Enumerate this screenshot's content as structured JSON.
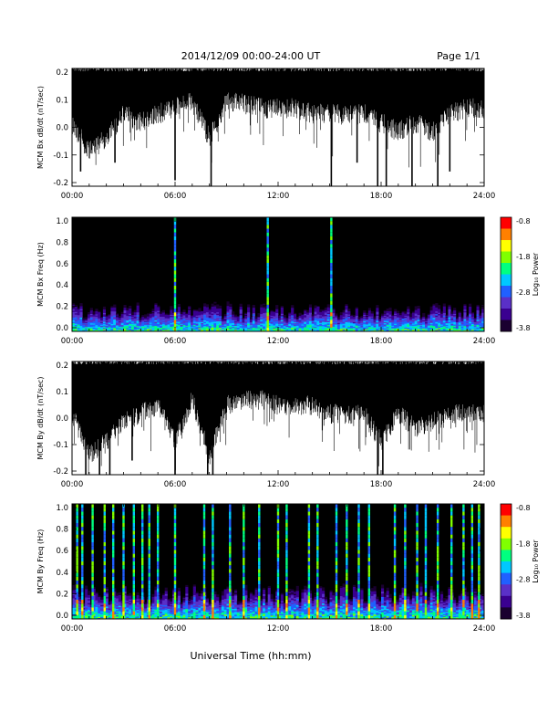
{
  "header": {
    "title": "2014/12/09  00:00-24:00 UT",
    "page": "Page 1/1"
  },
  "footer": {
    "xlabel": "Universal Time (hh:mm)"
  },
  "colors": {
    "waveform": "#000000",
    "spectrogram_background": "#000000",
    "colorbar": [
      "#1a0030",
      "#3a0090",
      "#5a30c8",
      "#2060ff",
      "#00c8ff",
      "#00ff80",
      "#80ff00",
      "#ffff00",
      "#ff8000",
      "#ff0000"
    ]
  },
  "colorbar": {
    "label": "Log₁₀ Power",
    "ticks": [
      "-0.8",
      "-1.8",
      "-2.8",
      "-3.8"
    ]
  },
  "chart_data": [
    {
      "type": "line",
      "id": "bx-wave",
      "ylabel": "MCM Bx dB/dt (nT/sec)",
      "ylim": [
        -0.2,
        0.2
      ],
      "xlim": [
        0,
        24
      ],
      "x_ticks": [
        "00:00",
        "06:00",
        "12:00",
        "18:00",
        "24:00"
      ],
      "y_ticks": [
        "0.2",
        "0.1",
        "0.0",
        "-0.1",
        "-0.2"
      ],
      "upper_envelope": 0.19,
      "baseline_lower": [
        [
          0,
          0.05
        ],
        [
          1,
          -0.05
        ],
        [
          2,
          0.0
        ],
        [
          3,
          0.08
        ],
        [
          4,
          0.05
        ],
        [
          5,
          0.08
        ],
        [
          6,
          0.1
        ],
        [
          7,
          0.12
        ],
        [
          8,
          0.0
        ],
        [
          9,
          0.12
        ],
        [
          10,
          0.12
        ],
        [
          11,
          0.1
        ],
        [
          12,
          0.1
        ],
        [
          13,
          0.1
        ],
        [
          14,
          0.08
        ],
        [
          15,
          0.08
        ],
        [
          16,
          0.08
        ],
        [
          17,
          0.08
        ],
        [
          18,
          0.05
        ],
        [
          19,
          0.02
        ],
        [
          20,
          0.05
        ],
        [
          21,
          0.02
        ],
        [
          22,
          0.08
        ],
        [
          23,
          0.1
        ],
        [
          24,
          0.1
        ]
      ],
      "spikes": [
        [
          0.5,
          -0.15
        ],
        [
          2.5,
          -0.12
        ],
        [
          6.0,
          -0.18
        ],
        [
          8.1,
          -0.2
        ],
        [
          15.1,
          -0.2
        ],
        [
          16.6,
          -0.12
        ],
        [
          17.8,
          -0.2
        ],
        [
          18.3,
          -0.2
        ],
        [
          19.8,
          -0.2
        ],
        [
          21.3,
          -0.2
        ],
        [
          22.0,
          -0.15
        ]
      ]
    },
    {
      "type": "heatmap",
      "id": "bx-spec",
      "ylabel": "MCM Bx Freq (Hz)",
      "ylim": [
        0.0,
        1.0
      ],
      "xlim": [
        0,
        24
      ],
      "x_ticks": [
        "00:00",
        "06:00",
        "12:00",
        "18:00",
        "24:00"
      ],
      "y_ticks": [
        "1.0",
        "0.8",
        "0.6",
        "0.4",
        "0.2",
        "0.0"
      ],
      "vertical_lines": [
        6.0,
        11.4,
        15.1
      ],
      "band_max_freq": 0.25
    },
    {
      "type": "line",
      "id": "by-wave",
      "ylabel": "MCM By dB/dt (nT/sec)",
      "ylim": [
        -0.2,
        0.2
      ],
      "xlim": [
        0,
        24
      ],
      "x_ticks": [
        "00:00",
        "06:00",
        "12:00",
        "18:00",
        "24:00"
      ],
      "y_ticks": [
        "0.2",
        "0.1",
        "0.0",
        "-0.1",
        "-0.2"
      ],
      "upper_envelope": 0.19,
      "baseline_lower": [
        [
          0,
          0.05
        ],
        [
          1,
          -0.1
        ],
        [
          2,
          -0.05
        ],
        [
          3,
          0.02
        ],
        [
          4,
          0.05
        ],
        [
          5,
          0.08
        ],
        [
          6,
          -0.05
        ],
        [
          7,
          0.1
        ],
        [
          8,
          -0.1
        ],
        [
          9,
          0.08
        ],
        [
          10,
          0.1
        ],
        [
          11,
          0.1
        ],
        [
          12,
          0.08
        ],
        [
          13,
          0.08
        ],
        [
          14,
          0.08
        ],
        [
          15,
          0.05
        ],
        [
          16,
          0.05
        ],
        [
          17,
          0.05
        ],
        [
          18,
          -0.05
        ],
        [
          19,
          0.05
        ],
        [
          20,
          0.0
        ],
        [
          21,
          0.02
        ],
        [
          22,
          0.05
        ],
        [
          23,
          0.05
        ],
        [
          24,
          0.05
        ]
      ],
      "spikes": [
        [
          0.8,
          -0.2
        ],
        [
          1.6,
          -0.2
        ],
        [
          2.2,
          -0.2
        ],
        [
          3.5,
          -0.15
        ],
        [
          6.0,
          -0.2
        ],
        [
          7.9,
          -0.2
        ],
        [
          8.2,
          -0.2
        ],
        [
          17.8,
          -0.2
        ],
        [
          18.1,
          -0.2
        ]
      ]
    },
    {
      "type": "heatmap",
      "id": "by-spec",
      "ylabel": "MCM By Freq (Hz)",
      "ylim": [
        0.0,
        1.0
      ],
      "xlim": [
        0,
        24
      ],
      "x_ticks": [
        "00:00",
        "06:00",
        "12:00",
        "18:00",
        "24:00"
      ],
      "y_ticks": [
        "1.0",
        "0.8",
        "0.6",
        "0.4",
        "0.2",
        "0.0"
      ],
      "vertical_lines": [
        0.3,
        0.6,
        1.2,
        1.9,
        2.4,
        3.0,
        3.6,
        4.1,
        4.5,
        5.0,
        6.0,
        7.7,
        8.2,
        9.2,
        10.0,
        10.9,
        12.0,
        12.5,
        13.8,
        14.3,
        15.4,
        16.0,
        16.7,
        17.3,
        18.8,
        19.4,
        20.1,
        20.6,
        21.3,
        22.1,
        22.8,
        23.3,
        23.7
      ],
      "band_max_freq": 0.3
    }
  ]
}
